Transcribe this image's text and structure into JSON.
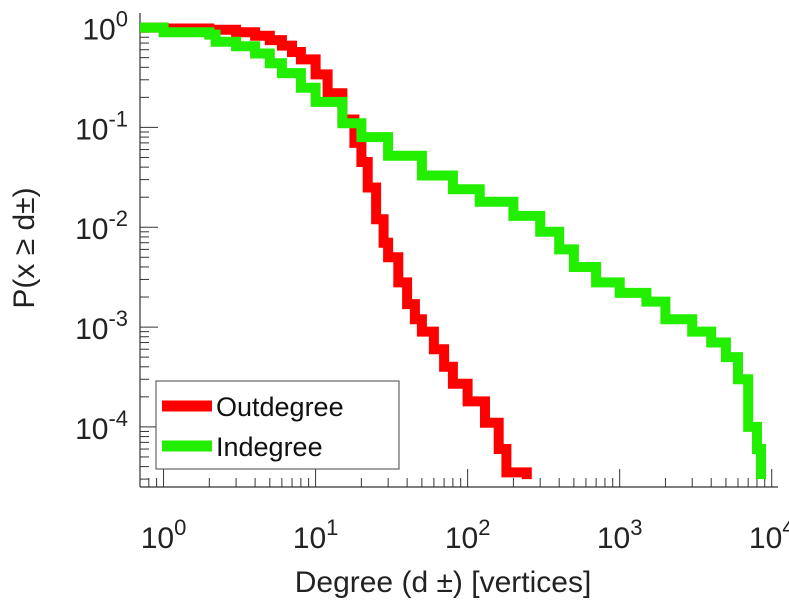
{
  "chart_data": {
    "type": "line",
    "title": "",
    "xlabel": "Degree (d ±) [vertices]",
    "ylabel": "P(x ≥ d±)",
    "xscale": "log",
    "yscale": "log",
    "xlim": [
      0.7,
      11000
    ],
    "ylim": [
      2.5e-05,
      1.4
    ],
    "x_ticks": [
      {
        "value": 1,
        "base": "10",
        "exp": "0"
      },
      {
        "value": 10,
        "base": "10",
        "exp": "1"
      },
      {
        "value": 100,
        "base": "10",
        "exp": "2"
      },
      {
        "value": 1000,
        "base": "10",
        "exp": "3"
      },
      {
        "value": 10000,
        "base": "10",
        "exp": "4"
      }
    ],
    "y_ticks": [
      {
        "value": 1,
        "base": "10",
        "exp": "0"
      },
      {
        "value": 0.1,
        "base": "10",
        "exp": "-1"
      },
      {
        "value": 0.01,
        "base": "10",
        "exp": "-2"
      },
      {
        "value": 0.001,
        "base": "10",
        "exp": "-3"
      },
      {
        "value": 0.0001,
        "base": "10",
        "exp": "-4"
      }
    ],
    "grid": false,
    "legend_position": "bottom-left",
    "series": [
      {
        "name": "Outdegree",
        "color": "#ff0000",
        "points": [
          [
            0.7,
            1.0
          ],
          [
            1,
            0.98
          ],
          [
            2,
            0.95
          ],
          [
            3,
            0.9
          ],
          [
            4,
            0.83
          ],
          [
            5,
            0.75
          ],
          [
            6,
            0.66
          ],
          [
            7,
            0.57
          ],
          [
            8,
            0.48
          ],
          [
            10,
            0.34
          ],
          [
            12,
            0.22
          ],
          [
            15,
            0.12
          ],
          [
            18,
            0.07
          ],
          [
            20,
            0.045
          ],
          [
            22,
            0.025
          ],
          [
            25,
            0.012
          ],
          [
            28,
            0.007
          ],
          [
            30,
            0.005
          ],
          [
            35,
            0.0028
          ],
          [
            40,
            0.0017
          ],
          [
            45,
            0.0012
          ],
          [
            50,
            0.0009
          ],
          [
            60,
            0.0006
          ],
          [
            70,
            0.0004
          ],
          [
            80,
            0.00027
          ],
          [
            100,
            0.00018
          ],
          [
            130,
            0.00011
          ],
          [
            160,
            6e-05
          ],
          [
            180,
            3.5e-05
          ],
          [
            240,
            3.5e-05
          ],
          [
            245,
            3e-05
          ]
        ]
      },
      {
        "name": "Indegree",
        "color": "#22ee00",
        "points": [
          [
            0.7,
            1.0
          ],
          [
            1,
            0.9
          ],
          [
            2,
            0.85
          ],
          [
            2.2,
            0.72
          ],
          [
            3,
            0.65
          ],
          [
            4,
            0.55
          ],
          [
            5,
            0.44
          ],
          [
            6,
            0.35
          ],
          [
            8,
            0.25
          ],
          [
            10,
            0.18
          ],
          [
            15,
            0.11
          ],
          [
            20,
            0.08
          ],
          [
            30,
            0.052
          ],
          [
            50,
            0.033
          ],
          [
            80,
            0.024
          ],
          [
            120,
            0.018
          ],
          [
            200,
            0.013
          ],
          [
            300,
            0.009
          ],
          [
            400,
            0.006
          ],
          [
            500,
            0.004
          ],
          [
            700,
            0.0028
          ],
          [
            1000,
            0.0022
          ],
          [
            1500,
            0.0018
          ],
          [
            2000,
            0.0012
          ],
          [
            3000,
            0.0009
          ],
          [
            4000,
            0.0007
          ],
          [
            5000,
            0.0005
          ],
          [
            6000,
            0.0003
          ],
          [
            7000,
            0.0001
          ],
          [
            8000,
            6e-05
          ],
          [
            8500,
            3e-05
          ]
        ]
      }
    ]
  }
}
